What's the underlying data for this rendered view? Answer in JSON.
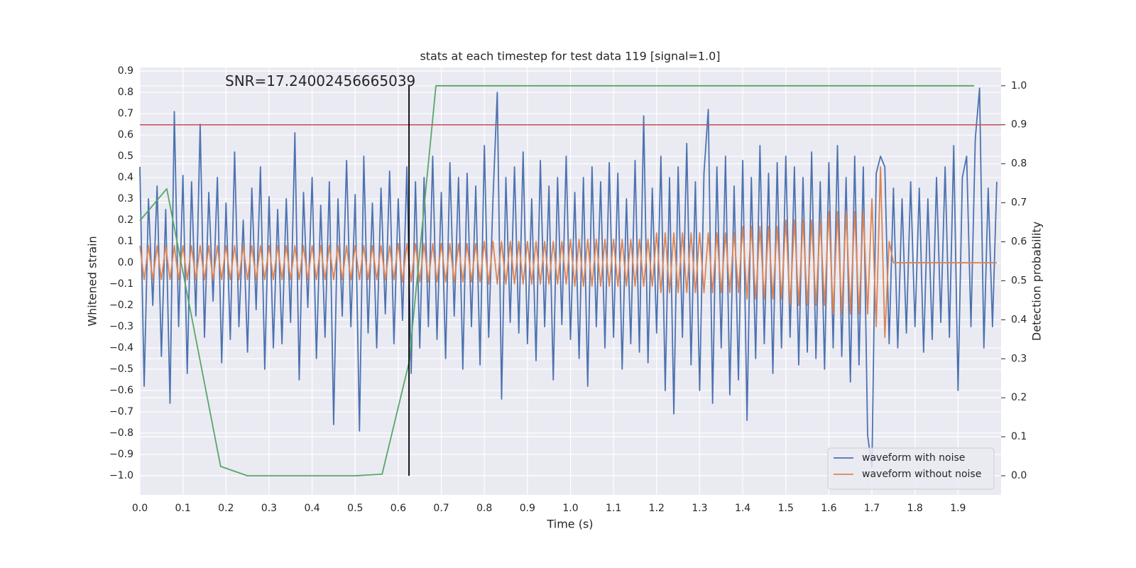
{
  "chart_data": {
    "type": "line",
    "title": "stats at each timestep for test data 119 [signal=1.0]",
    "xlabel": "Time (s)",
    "ylabel": "Whitened strain",
    "y2label": "Detection probability",
    "annotation": "SNR=17.24002456665039",
    "grid": true,
    "legend": "lower right",
    "xlim": [
      0,
      2.0
    ],
    "ylim": [
      -1.09,
      0.917
    ],
    "y2lim": [
      -0.049,
      1.047
    ],
    "xticks": [
      {
        "value": 0,
        "label": "0.0"
      },
      0.1,
      0.2,
      0.3,
      0.4,
      0.5,
      0.6,
      0.7,
      0.8,
      0.9,
      {
        "value": 1,
        "label": "1.0"
      },
      1.1,
      1.2,
      1.3,
      1.4,
      1.5,
      1.6,
      1.7,
      1.8,
      1.9
    ],
    "yticks": [
      {
        "value": -1,
        "label": "−1.0"
      },
      {
        "value": -0.9,
        "label": "−0.9"
      },
      {
        "value": -0.8,
        "label": "−0.8"
      },
      {
        "value": -0.7,
        "label": "−0.7"
      },
      {
        "value": -0.6,
        "label": "−0.6"
      },
      {
        "value": -0.5,
        "label": "−0.5"
      },
      {
        "value": -0.4,
        "label": "−0.4"
      },
      {
        "value": -0.3,
        "label": "−0.3"
      },
      {
        "value": -0.2,
        "label": "−0.2"
      },
      {
        "value": -0.1,
        "label": "−0.1"
      },
      {
        "value": 0,
        "label": "0.0"
      },
      0.1,
      0.2,
      0.3,
      0.4,
      0.5,
      0.6,
      0.7,
      0.8,
      0.9
    ],
    "y2ticks": [
      {
        "value": 0,
        "label": "0.0"
      },
      0.1,
      0.2,
      0.3,
      0.4,
      0.5,
      0.6,
      0.7,
      0.8,
      0.9,
      {
        "value": 1,
        "label": "1.0"
      }
    ],
    "threshold": 0.9,
    "threshold_color": "#c44e52",
    "detection_time": 0.625,
    "detection_color": "#000000",
    "x": [
      0,
      0.01,
      0.02,
      0.03,
      0.04,
      0.05,
      0.06,
      0.07,
      0.08,
      0.09,
      0.1,
      0.11,
      0.12,
      0.13,
      0.14,
      0.15,
      0.16,
      0.17,
      0.18,
      0.19,
      0.2,
      0.21,
      0.22,
      0.23,
      0.24,
      0.25,
      0.26,
      0.27,
      0.28,
      0.29,
      0.3,
      0.31,
      0.32,
      0.33,
      0.34,
      0.35,
      0.36,
      0.37,
      0.38,
      0.39,
      0.4,
      0.41,
      0.42,
      0.43,
      0.44,
      0.45,
      0.46,
      0.47,
      0.48,
      0.49,
      0.5,
      0.51,
      0.52,
      0.53,
      0.54,
      0.55,
      0.56,
      0.57,
      0.58,
      0.59,
      0.6,
      0.61,
      0.62,
      0.63,
      0.64,
      0.65,
      0.66,
      0.67,
      0.68,
      0.69,
      0.7,
      0.71,
      0.72,
      0.73,
      0.74,
      0.75,
      0.76,
      0.77,
      0.78,
      0.79,
      0.8,
      0.81,
      0.82,
      0.83,
      0.84,
      0.85,
      0.86,
      0.87,
      0.88,
      0.89,
      0.9,
      0.91,
      0.92,
      0.93,
      0.94,
      0.95,
      0.96,
      0.97,
      0.98,
      0.99,
      1,
      1.01,
      1.02,
      1.03,
      1.04,
      1.05,
      1.06,
      1.07,
      1.08,
      1.09,
      1.1,
      1.11,
      1.12,
      1.13,
      1.14,
      1.15,
      1.16,
      1.17,
      1.18,
      1.19,
      1.2,
      1.21,
      1.22,
      1.23,
      1.24,
      1.25,
      1.26,
      1.27,
      1.28,
      1.29,
      1.3,
      1.31,
      1.32,
      1.33,
      1.34,
      1.35,
      1.36,
      1.37,
      1.38,
      1.39,
      1.4,
      1.41,
      1.42,
      1.43,
      1.44,
      1.45,
      1.46,
      1.47,
      1.48,
      1.49,
      1.5,
      1.51,
      1.52,
      1.53,
      1.54,
      1.55,
      1.56,
      1.57,
      1.58,
      1.59,
      1.6,
      1.61,
      1.62,
      1.63,
      1.64,
      1.65,
      1.66,
      1.67,
      1.68,
      1.69,
      1.7,
      1.71,
      1.72,
      1.73,
      1.74,
      1.75,
      1.76,
      1.77,
      1.78,
      1.79,
      1.8,
      1.81,
      1.82,
      1.83,
      1.84,
      1.85,
      1.86,
      1.87,
      1.88,
      1.89,
      1.9,
      1.91,
      1.92,
      1.93,
      1.94,
      1.95,
      1.96,
      1.97,
      1.98,
      1.99
    ],
    "series": [
      {
        "name": "waveform with noise",
        "color": "#4c72b0",
        "axis": "y",
        "values": [
          0.45,
          -0.58,
          0.3,
          -0.2,
          0.36,
          -0.44,
          0.25,
          -0.66,
          0.71,
          -0.3,
          0.41,
          -0.52,
          0.38,
          -0.25,
          0.65,
          -0.35,
          0.33,
          -0.18,
          0.4,
          -0.47,
          0.28,
          -0.36,
          0.52,
          -0.3,
          0.2,
          -0.42,
          0.35,
          -0.22,
          0.45,
          -0.5,
          0.31,
          -0.4,
          0.25,
          -0.38,
          0.3,
          -0.28,
          0.61,
          -0.55,
          0.33,
          -0.21,
          0.4,
          -0.45,
          0.27,
          -0.35,
          0.38,
          -0.76,
          0.3,
          -0.25,
          0.48,
          -0.3,
          0.32,
          -0.79,
          0.5,
          -0.33,
          0.28,
          -0.4,
          0.35,
          -0.24,
          0.43,
          -0.38,
          0.3,
          -0.27,
          0.45,
          -0.52,
          0.38,
          -0.4,
          0.4,
          -0.3,
          0.5,
          -0.36,
          0.33,
          -0.45,
          0.47,
          -0.25,
          0.4,
          -0.5,
          0.42,
          -0.3,
          0.36,
          -0.48,
          0.55,
          -0.35,
          0.3,
          0.8,
          -0.64,
          0.4,
          -0.28,
          0.45,
          -0.33,
          0.52,
          -0.38,
          0.3,
          -0.46,
          0.48,
          -0.3,
          0.36,
          -0.55,
          0.4,
          -0.29,
          0.5,
          -0.36,
          0.33,
          -0.45,
          0.4,
          -0.58,
          0.45,
          -0.3,
          0.38,
          -0.4,
          0.47,
          -0.35,
          0.42,
          -0.5,
          0.3,
          -0.38,
          0.48,
          -0.42,
          0.69,
          -0.47,
          0.35,
          -0.33,
          0.5,
          -0.6,
          0.4,
          -0.71,
          0.45,
          -0.35,
          0.56,
          -0.48,
          0.38,
          -0.6,
          0.42,
          0.72,
          -0.66,
          0.45,
          -0.4,
          0.5,
          -0.62,
          0.36,
          -0.55,
          0.48,
          -0.74,
          0.4,
          -0.45,
          0.55,
          -0.38,
          0.42,
          -0.52,
          0.47,
          -0.4,
          0.5,
          -0.35,
          0.45,
          -0.48,
          0.4,
          -0.42,
          0.52,
          -0.45,
          0.38,
          -0.5,
          0.47,
          -0.4,
          0.55,
          -0.44,
          0.4,
          -0.56,
          0.5,
          -0.48,
          0.45,
          -0.81,
          -0.96,
          0.42,
          0.5,
          0.45,
          -0.38,
          0.35,
          -0.4,
          0.3,
          -0.33,
          0.38,
          -0.3,
          0.35,
          -0.42,
          0.3,
          -0.36,
          0.4,
          -0.28,
          0.45,
          -0.35,
          0.55,
          -0.6,
          0.4,
          0.5,
          -0.3,
          0.58,
          0.82,
          -0.4,
          0.35,
          -0.3,
          0.38
        ]
      },
      {
        "name": "waveform without noise",
        "color": "#dd8452",
        "axis": "y",
        "values": [
          0.08,
          -0.08,
          0.08,
          -0.08,
          0.08,
          -0.08,
          0.08,
          -0.08,
          0.08,
          -0.08,
          0.08,
          -0.08,
          0.08,
          -0.08,
          0.08,
          -0.08,
          0.08,
          -0.08,
          0.08,
          -0.08,
          0.08,
          -0.08,
          0.08,
          -0.08,
          0.08,
          -0.08,
          0.08,
          -0.08,
          0.08,
          -0.08,
          0.08,
          -0.08,
          0.08,
          -0.08,
          0.08,
          -0.08,
          0.08,
          -0.08,
          0.08,
          -0.08,
          0.08,
          -0.08,
          0.08,
          -0.08,
          0.08,
          -0.08,
          0.08,
          -0.08,
          0.08,
          -0.08,
          0.08,
          -0.08,
          0.08,
          -0.08,
          0.08,
          -0.08,
          0.08,
          -0.08,
          0.08,
          -0.08,
          0.09,
          -0.09,
          0.09,
          -0.09,
          0.09,
          -0.09,
          0.09,
          -0.09,
          0.09,
          -0.09,
          0.09,
          -0.09,
          0.09,
          -0.09,
          0.09,
          -0.09,
          0.09,
          -0.09,
          0.09,
          -0.09,
          0.1,
          -0.1,
          0.1,
          -0.1,
          0.1,
          -0.1,
          0.1,
          -0.1,
          0.1,
          -0.1,
          0.1,
          -0.1,
          0.1,
          -0.1,
          0.1,
          -0.1,
          0.1,
          -0.1,
          0.1,
          -0.1,
          0.11,
          -0.11,
          0.11,
          -0.11,
          0.11,
          -0.11,
          0.11,
          -0.11,
          0.11,
          -0.11,
          0.11,
          -0.11,
          0.11,
          -0.11,
          0.11,
          -0.11,
          0.11,
          -0.11,
          0.11,
          -0.11,
          0.14,
          -0.14,
          0.14,
          -0.14,
          0.14,
          -0.14,
          0.14,
          -0.14,
          0.14,
          -0.14,
          0.14,
          -0.14,
          0.14,
          -0.14,
          0.14,
          -0.14,
          0.14,
          -0.14,
          0.14,
          -0.14,
          0.17,
          -0.17,
          0.17,
          -0.17,
          0.17,
          -0.17,
          0.17,
          -0.17,
          0.17,
          -0.17,
          0.2,
          -0.2,
          0.2,
          -0.2,
          0.2,
          -0.2,
          0.2,
          -0.2,
          0.2,
          -0.2,
          0.24,
          -0.24,
          0.24,
          -0.24,
          0.24,
          -0.24,
          0.24,
          -0.24,
          0.24,
          -0.24,
          0.3,
          -0.3,
          0.45,
          -0.35,
          0.1,
          0,
          0,
          0,
          0,
          0,
          0,
          0,
          0,
          0,
          0,
          0,
          0,
          0,
          0,
          0,
          0,
          0,
          0,
          0,
          0,
          0,
          0,
          0,
          0,
          0
        ]
      },
      {
        "name": "Detection probability",
        "color": "#55a868",
        "axis": "y2",
        "legend": false,
        "x": [
          0,
          0.0625,
          0.125,
          0.1875,
          0.25,
          0.3125,
          0.375,
          0.4375,
          0.5,
          0.5625,
          0.625,
          0.6875,
          0.75,
          0.8125,
          0.875,
          0.9375,
          1,
          1.0625,
          1.125,
          1.1875,
          1.25,
          1.3125,
          1.375,
          1.4375,
          1.5,
          1.5625,
          1.625,
          1.6875,
          1.75,
          1.8125,
          1.875,
          1.9375
        ],
        "values": [
          0.654,
          0.736,
          0.38,
          0.024,
          0,
          0,
          0,
          0,
          0,
          0.004,
          0.29,
          1,
          1,
          1,
          1,
          1,
          1,
          1,
          1,
          1,
          1,
          1,
          1,
          1,
          1,
          1,
          1,
          1,
          1,
          1,
          1,
          1
        ]
      }
    ]
  }
}
